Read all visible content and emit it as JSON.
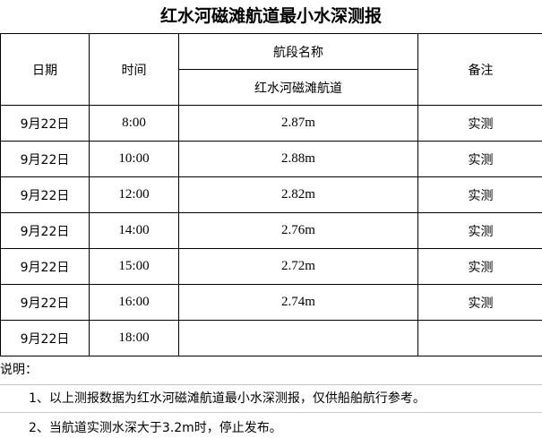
{
  "title": "红水河磁滩航道最小水深测报",
  "headers": {
    "date": "日期",
    "time": "时间",
    "section": "航段名称",
    "section_name": "红水河磁滩航道",
    "remark": "备注"
  },
  "rows": [
    {
      "date": "9月22日",
      "time": "8:00",
      "depth": "2.87m",
      "remark": "实测"
    },
    {
      "date": "9月22日",
      "time": "10:00",
      "depth": "2.88m",
      "remark": "实测"
    },
    {
      "date": "9月22日",
      "time": "12:00",
      "depth": "2.82m",
      "remark": "实测"
    },
    {
      "date": "9月22日",
      "time": "14:00",
      "depth": "2.76m",
      "remark": "实测"
    },
    {
      "date": "9月22日",
      "time": "15:00",
      "depth": "2.72m",
      "remark": "实测"
    },
    {
      "date": "9月22日",
      "time": "16:00",
      "depth": "2.74m",
      "remark": "实测"
    },
    {
      "date": "9月22日",
      "time": "18:00",
      "depth": "",
      "remark": ""
    }
  ],
  "notes": {
    "label": "说明：",
    "items": [
      "1、以上测报数据为红水河磁滩航道最小水深测报，仅供船舶航行参考。",
      "2、当航道实测水深大于3.2m时，停止发布。"
    ]
  }
}
